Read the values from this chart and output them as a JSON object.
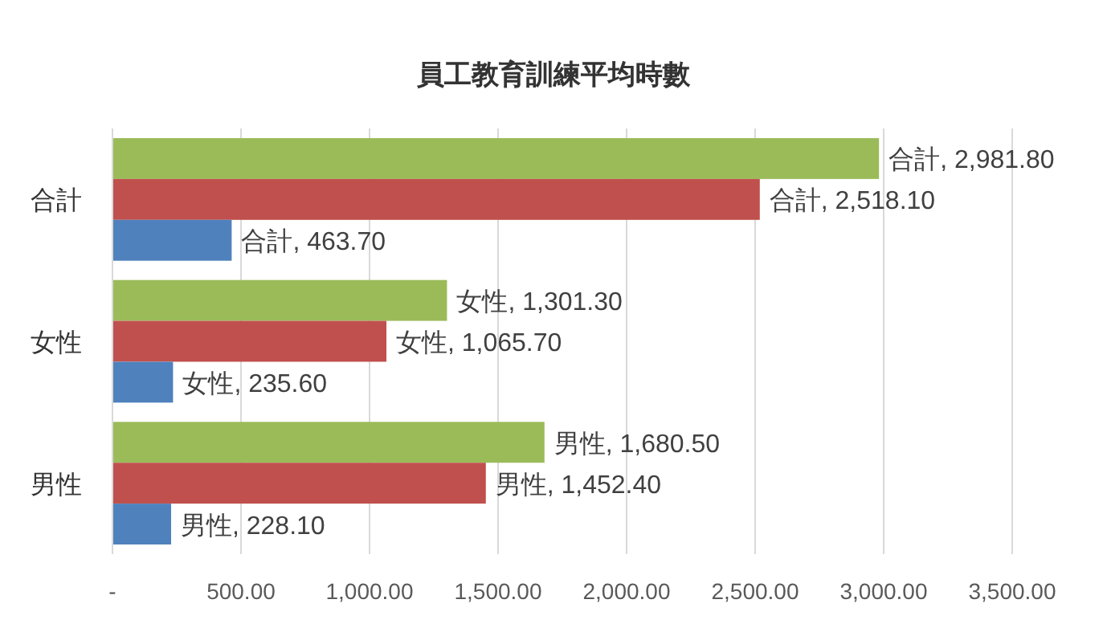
{
  "chart_data": {
    "type": "bar",
    "title": "員工教育訓練平均時數",
    "orientation": "horizontal",
    "categories": [
      "合計",
      "女性",
      "男性"
    ],
    "series": [
      {
        "color": "#9bbb59",
        "values": [
          2981.8,
          1301.3,
          1680.5
        ],
        "value_labels": [
          "合計, 2,981.80",
          "女性, 1,301.30",
          "男性, 1,680.50"
        ]
      },
      {
        "color": "#c0504d",
        "values": [
          2518.1,
          1065.7,
          1452.4
        ],
        "value_labels": [
          "合計, 2,518.10",
          "女性, 1,065.70",
          "男性, 1,452.40"
        ]
      },
      {
        "color": "#4f81bd",
        "values": [
          463.7,
          235.6,
          228.1
        ],
        "value_labels": [
          "合計, 463.70",
          "女性, 235.60",
          "男性, 228.10"
        ]
      }
    ],
    "xlim": [
      0,
      3500
    ],
    "xticks": [
      {
        "value": 0,
        "label": "-"
      },
      {
        "value": 500,
        "label": "500.00"
      },
      {
        "value": 1000,
        "label": "1,000.00"
      },
      {
        "value": 1500,
        "label": "1,500.00"
      },
      {
        "value": 2000,
        "label": "2,000.00"
      },
      {
        "value": 2500,
        "label": "2,500.00"
      },
      {
        "value": 3000,
        "label": "3,000.00"
      },
      {
        "value": 3500,
        "label": "3,500.00"
      }
    ],
    "grid": "x"
  }
}
